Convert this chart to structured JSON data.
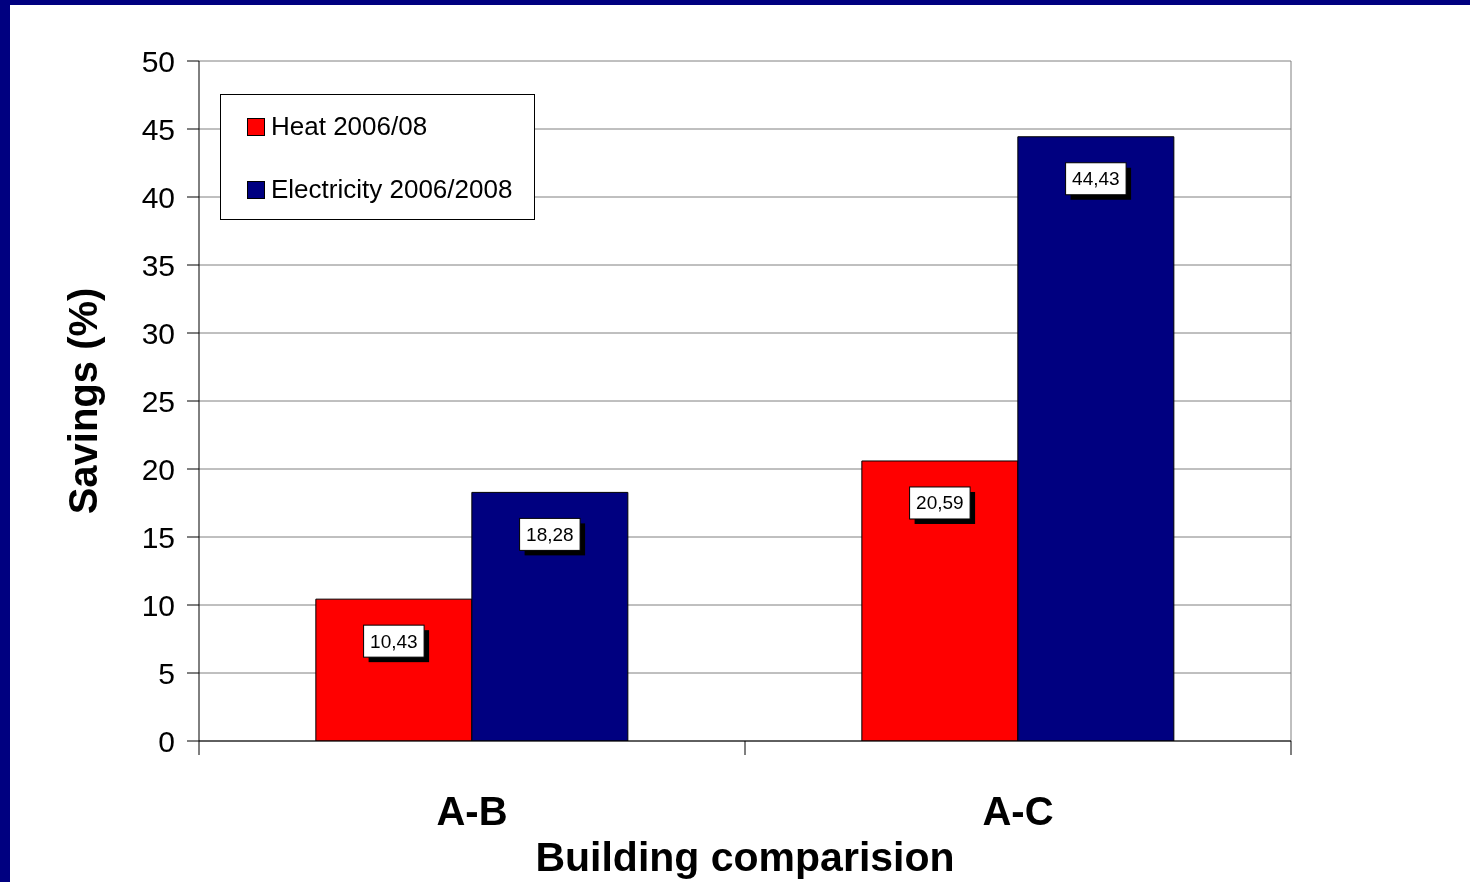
{
  "chart_data": {
    "type": "bar",
    "xlabel": "Building comparision",
    "ylabel": "Savings (%)",
    "categories": [
      "A-B",
      "A-C"
    ],
    "series": [
      {
        "name": "Heat 2006/08",
        "color": "#ff0000",
        "values": [
          10.43,
          20.59
        ],
        "value_labels": [
          "10,43",
          "20,59"
        ]
      },
      {
        "name": "Electricity 2006/2008",
        "color": "#000080",
        "values": [
          18.28,
          44.43
        ],
        "value_labels": [
          "18,28",
          "44,43"
        ]
      }
    ],
    "ylim": [
      0,
      50
    ],
    "yticks": [
      0,
      5,
      10,
      15,
      20,
      25,
      30,
      35,
      40,
      45,
      50
    ],
    "grid": "y",
    "legend": "top left"
  }
}
